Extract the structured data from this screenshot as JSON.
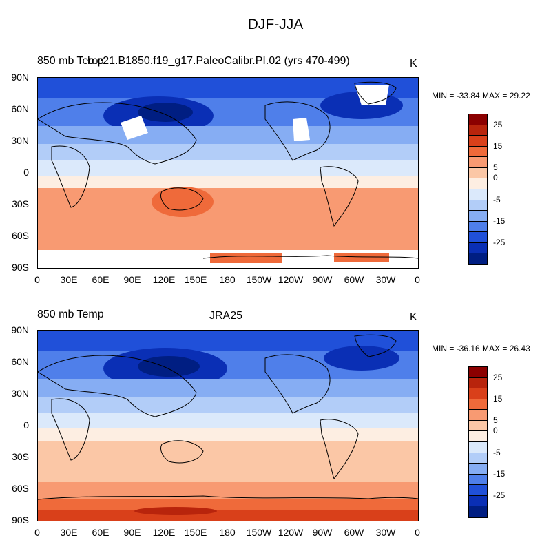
{
  "title": "DJF-JJA",
  "colorbar": {
    "colors": [
      "#8b0000",
      "#b8240c",
      "#d9401a",
      "#ef6a3a",
      "#f89a72",
      "#fbc7a6",
      "#fdeee2",
      "#dbe9fb",
      "#b2cdf8",
      "#86adf3",
      "#4f7fea",
      "#2050d9",
      "#0a2fb5",
      "#001e82"
    ],
    "levels": [
      "30",
      "25",
      "20",
      "15",
      "10",
      "5",
      "0",
      "-5",
      "-10",
      "-15",
      "-20",
      "-25",
      "-30"
    ],
    "tick_labels": [
      "25",
      "15",
      "5",
      "0",
      "-5",
      "-15",
      "-25"
    ]
  },
  "axes": {
    "lat_labels": [
      "90N",
      "60N",
      "30N",
      "0",
      "30S",
      "60S",
      "90S"
    ],
    "lon_labels": [
      "0",
      "30E",
      "60E",
      "90E",
      "120E",
      "150E",
      "180",
      "150W",
      "120W",
      "90W",
      "60W",
      "30W",
      "0"
    ]
  },
  "panels": [
    {
      "left_label": "850 mb Temp",
      "center_label": "b.e21.B1850.f19_g17.PaleoCalibr.PI.02 (yrs 470-499)",
      "units": "K",
      "minmax": "MIN = -33.84 MAX =  29.22"
    },
    {
      "left_label": "850 mb Temp",
      "center_label": "JRA25",
      "units": "K",
      "minmax": "MIN = -36.16 MAX =  26.43"
    }
  ]
}
